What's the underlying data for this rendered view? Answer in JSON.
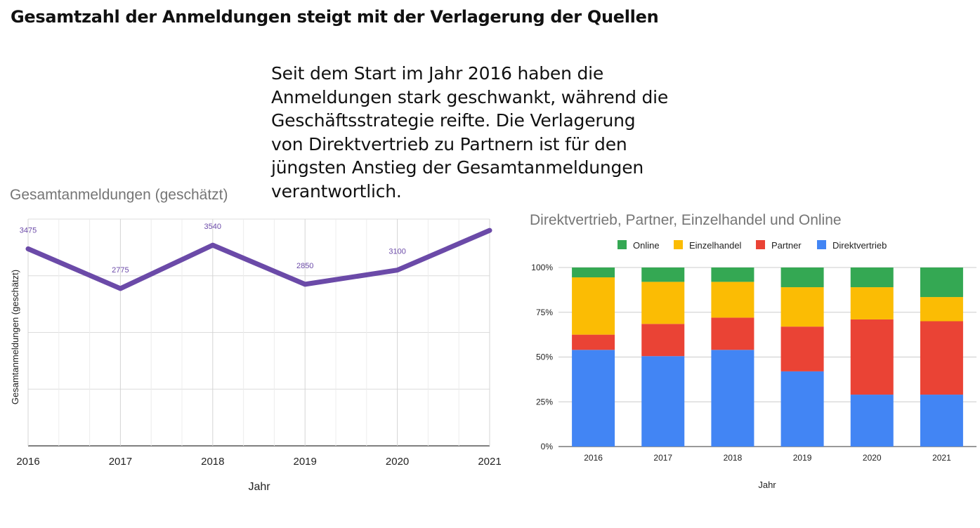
{
  "page": {
    "title": "Gesamtzahl der Anmeldungen steigt mit der Verlagerung der Quellen",
    "intro_lines": [
      "Seit dem Start im Jahr 2016 haben die",
      "Anmeldungen stark geschwankt, während die",
      "Geschäftsstrategie reifte. Die Verlagerung",
      "von Direktvertrieb zu Partnern ist für den",
      "jüngsten Anstieg der Gesamtanmeldungen",
      "verantwortlich."
    ]
  },
  "chart_data": [
    {
      "type": "line",
      "title": "Gesamtanmeldungen (geschätzt)",
      "xlabel": "Jahr",
      "ylabel": "Gesamtanmeldungen (geschätzt)",
      "x": [
        "2016",
        "2017",
        "2018",
        "2019",
        "2020",
        "2021"
      ],
      "series": [
        {
          "values": [
            3475,
            2775,
            3540,
            2850,
            3100,
            3800
          ],
          "data_labels": [
            "3475",
            "2775",
            "3540",
            "2850",
            "3100",
            ""
          ],
          "color": "#6b4aa8"
        }
      ],
      "ylim": [
        0,
        4000
      ],
      "grid": true,
      "y_tick_labels_shown": false,
      "legend": "none"
    },
    {
      "type": "bar",
      "stacked": "percent",
      "title": "Direktvertrieb, Partner, Einzelhandel und Online",
      "xlabel": "Jahr",
      "ylabel": "",
      "categories": [
        "2016",
        "2017",
        "2018",
        "2019",
        "2020",
        "2021"
      ],
      "y_ticks": [
        "0%",
        "25%",
        "50%",
        "75%",
        "100%"
      ],
      "ylim": [
        0,
        100
      ],
      "legend": "top",
      "legend_order": [
        "Online",
        "Einzelhandel",
        "Partner",
        "Direktvertrieb"
      ],
      "series": [
        {
          "name": "Direktvertrieb",
          "color": "#4285f4",
          "values": [
            54,
            50.5,
            54,
            42,
            29,
            29
          ]
        },
        {
          "name": "Partner",
          "color": "#ea4335",
          "values": [
            8.5,
            18,
            18,
            25,
            42,
            41
          ]
        },
        {
          "name": "Einzelhandel",
          "color": "#fbbc04",
          "values": [
            32,
            23.5,
            20,
            22,
            18,
            13.5
          ]
        },
        {
          "name": "Online",
          "color": "#34a853",
          "values": [
            5.5,
            8,
            8,
            11,
            11,
            16.5
          ]
        }
      ],
      "grid": true
    }
  ]
}
